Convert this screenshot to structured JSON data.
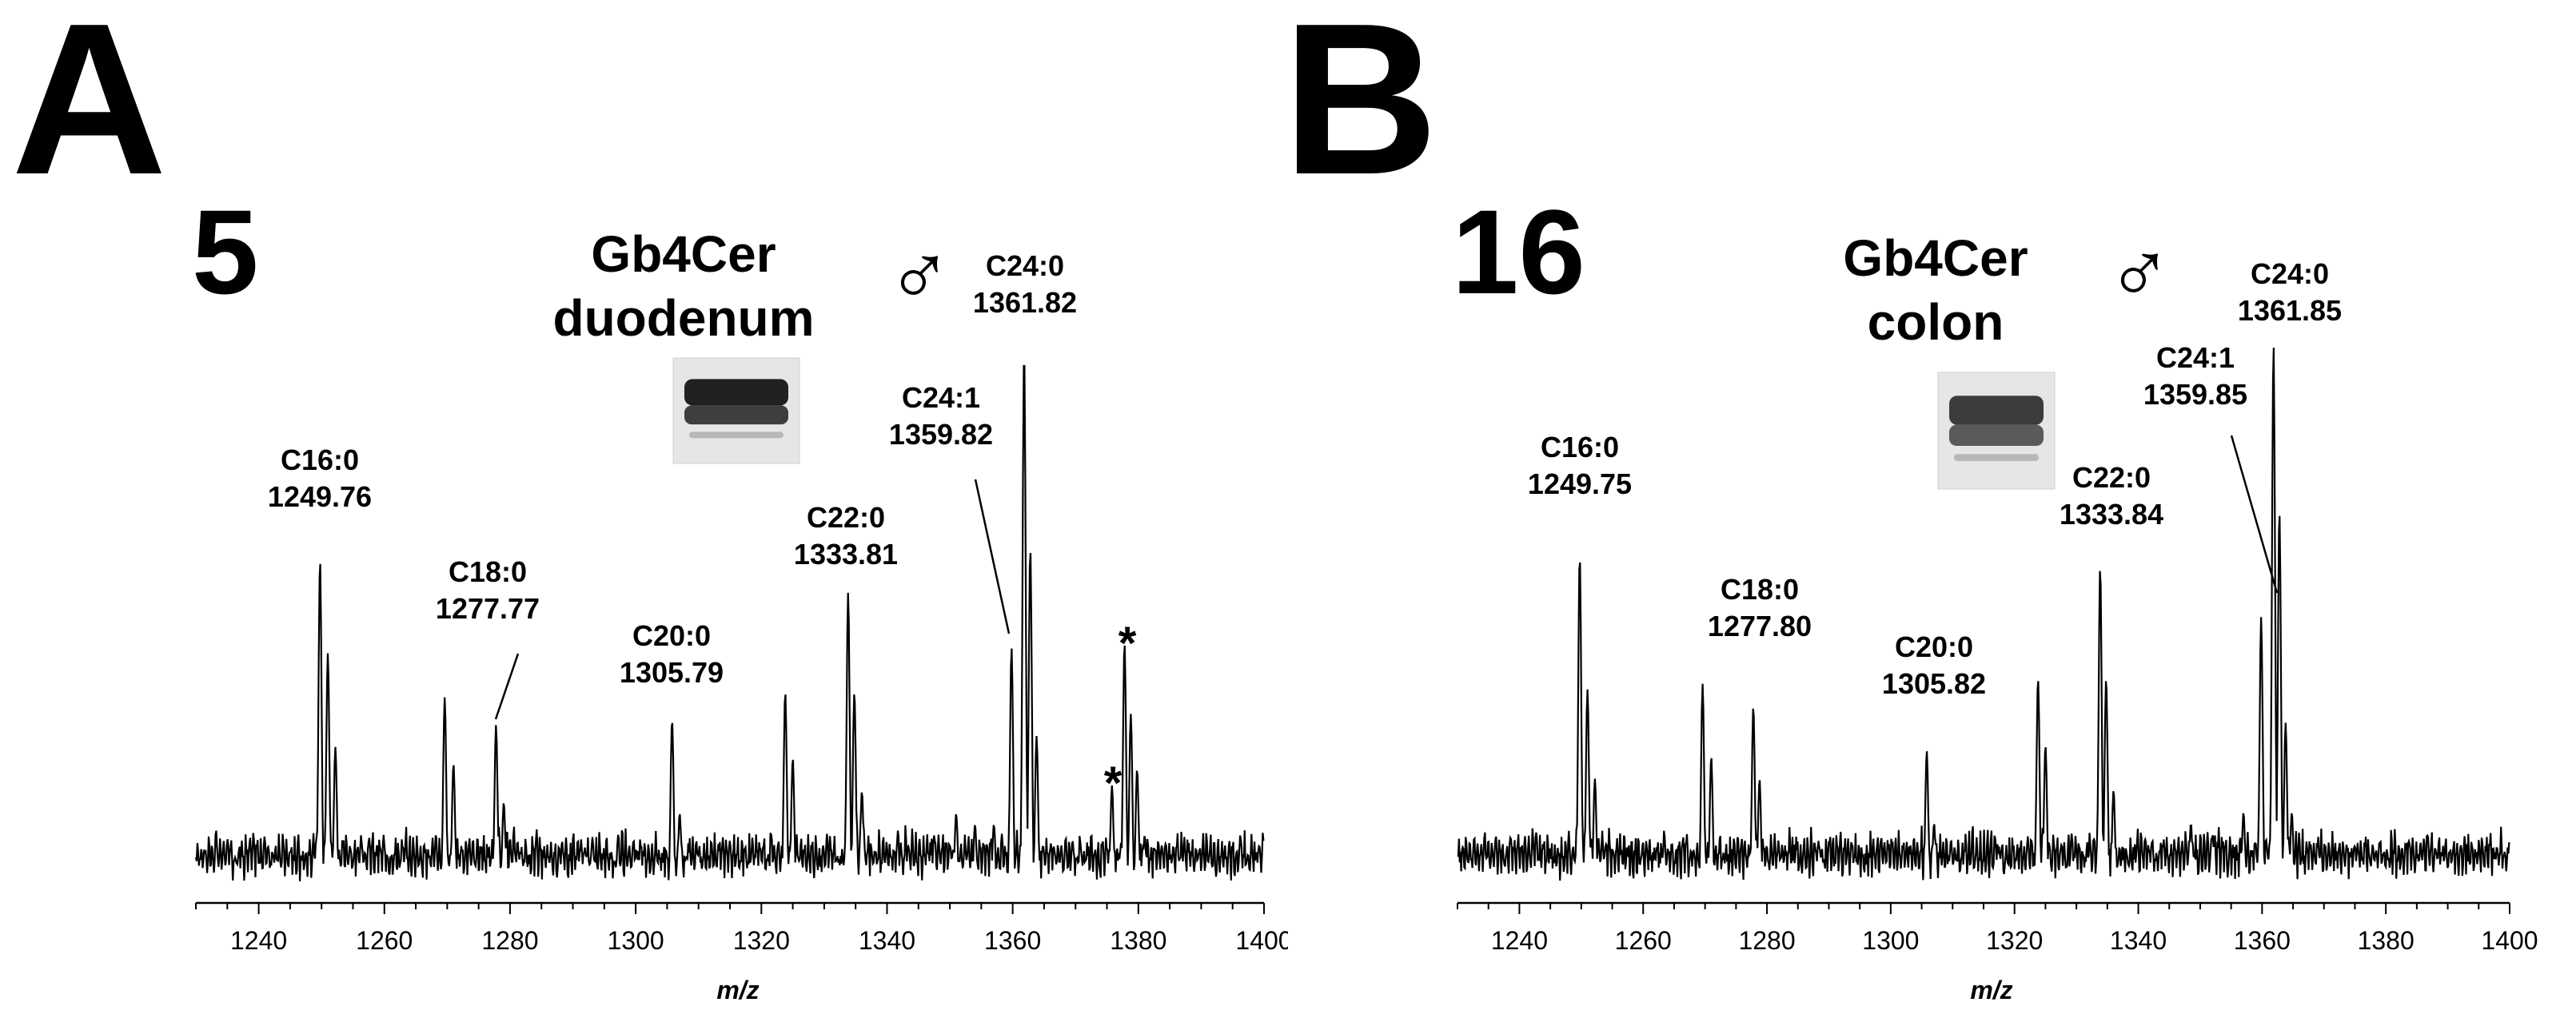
{
  "chart_data": [
    {
      "type": "line",
      "panel_letter": "A",
      "sample_number": "5",
      "legend": [
        "Gb4Cer",
        "duodenum"
      ],
      "symbol": "♂",
      "xlabel": "m/z",
      "ylabel": "",
      "xlim": [
        1230,
        1400
      ],
      "xticks": [
        "1240",
        "1260",
        "1280",
        "1300",
        "1320",
        "1340",
        "1360",
        "1380",
        "1400"
      ],
      "grid": false,
      "asterisk_marks": [
        "*",
        "*"
      ],
      "asterisk_peaks": [
        1375.8,
        1377.8
      ],
      "peaks": [
        {
          "x": 1249.76,
          "y": 0.62,
          "label": [
            "C16:0",
            "1249.76"
          ]
        },
        {
          "x": 1277.77,
          "y": 0.32,
          "label": [
            "C18:0",
            "1277.77"
          ]
        },
        {
          "x": 1305.79,
          "y": 0.33,
          "label": [
            "C20:0",
            "1305.79"
          ]
        },
        {
          "x": 1333.81,
          "y": 0.56,
          "label": [
            "C22:0",
            "1333.81"
          ]
        },
        {
          "x": 1359.82,
          "y": 0.46,
          "label": [
            "C24:1",
            "1359.82"
          ]
        },
        {
          "x": 1361.82,
          "y": 1.0,
          "label": [
            "C24:0",
            "1361.82"
          ]
        }
      ],
      "minor_peaks": [
        {
          "x": 1251.0,
          "y": 0.45
        },
        {
          "x": 1252.2,
          "y": 0.28
        },
        {
          "x": 1269.6,
          "y": 0.37
        },
        {
          "x": 1271.0,
          "y": 0.25
        },
        {
          "x": 1279.0,
          "y": 0.18
        },
        {
          "x": 1307.0,
          "y": 0.16
        },
        {
          "x": 1323.8,
          "y": 0.38
        },
        {
          "x": 1325.0,
          "y": 0.26
        },
        {
          "x": 1334.8,
          "y": 0.38
        },
        {
          "x": 1336.0,
          "y": 0.2
        },
        {
          "x": 1347.5,
          "y": 0.12
        },
        {
          "x": 1351.0,
          "y": 0.16
        },
        {
          "x": 1354.0,
          "y": 0.14
        },
        {
          "x": 1357.0,
          "y": 0.14
        },
        {
          "x": 1362.8,
          "y": 0.64
        },
        {
          "x": 1363.8,
          "y": 0.3
        },
        {
          "x": 1375.8,
          "y": 0.21
        },
        {
          "x": 1377.8,
          "y": 0.47
        },
        {
          "x": 1378.8,
          "y": 0.34
        },
        {
          "x": 1379.8,
          "y": 0.24
        },
        {
          "x": 1381.0,
          "y": 0.12
        }
      ]
    },
    {
      "type": "line",
      "panel_letter": "B",
      "sample_number": "16",
      "legend": [
        "Gb4Cer",
        "colon"
      ],
      "symbol": "♂",
      "xlabel": "m/z",
      "ylabel": "",
      "xlim": [
        1230,
        1400
      ],
      "xticks": [
        "1240",
        "1260",
        "1280",
        "1300",
        "1320",
        "1340",
        "1360",
        "1380",
        "1400"
      ],
      "grid": false,
      "peaks": [
        {
          "x": 1249.75,
          "y": 0.62,
          "label": [
            "C16:0",
            "1249.75"
          ]
        },
        {
          "x": 1277.8,
          "y": 0.35,
          "label": [
            "C18:0",
            "1277.80"
          ]
        },
        {
          "x": 1305.82,
          "y": 0.27,
          "label": [
            "C20:0",
            "1305.82"
          ]
        },
        {
          "x": 1333.84,
          "y": 0.6,
          "label": [
            "C22:0",
            "1333.84"
          ]
        },
        {
          "x": 1359.85,
          "y": 0.51,
          "label": [
            "C24:1",
            "1359.85"
          ]
        },
        {
          "x": 1361.85,
          "y": 1.0,
          "label": [
            "C24:0",
            "1361.85"
          ]
        }
      ],
      "minor_peaks": [
        {
          "x": 1251.0,
          "y": 0.38
        },
        {
          "x": 1252.2,
          "y": 0.22
        },
        {
          "x": 1269.6,
          "y": 0.39
        },
        {
          "x": 1271.0,
          "y": 0.26
        },
        {
          "x": 1278.8,
          "y": 0.22
        },
        {
          "x": 1307.0,
          "y": 0.14
        },
        {
          "x": 1323.8,
          "y": 0.4
        },
        {
          "x": 1325.0,
          "y": 0.28
        },
        {
          "x": 1334.8,
          "y": 0.4
        },
        {
          "x": 1336.0,
          "y": 0.2
        },
        {
          "x": 1348.5,
          "y": 0.14
        },
        {
          "x": 1352.0,
          "y": 0.12
        },
        {
          "x": 1357.0,
          "y": 0.16
        },
        {
          "x": 1362.8,
          "y": 0.7
        },
        {
          "x": 1363.8,
          "y": 0.32
        },
        {
          "x": 1364.8,
          "y": 0.16
        },
        {
          "x": 1375.0,
          "y": 0.1
        }
      ]
    }
  ]
}
